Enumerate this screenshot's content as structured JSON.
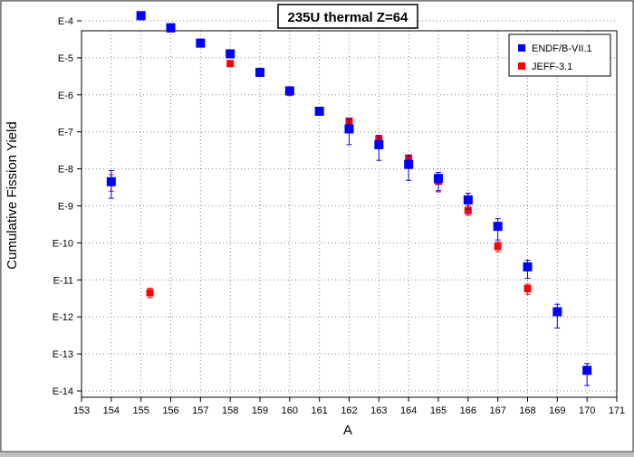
{
  "chart_data": {
    "type": "scatter",
    "title": "235U thermal Z=64",
    "xlabel": "A",
    "ylabel": "Cumulative Fission Yield",
    "xlim": [
      153,
      171
    ],
    "ylim": [
      1e-14,
      0.0001
    ],
    "yscale": "log",
    "grid": true,
    "legend_position": "top-right",
    "x_ticks": [
      "153",
      "154",
      "155",
      "156",
      "157",
      "158",
      "159",
      "160",
      "161",
      "162",
      "163",
      "164",
      "165",
      "166",
      "167",
      "168",
      "169",
      "170",
      "171"
    ],
    "y_ticks": [
      {
        "label": "E-4",
        "value": 0.0001
      },
      {
        "label": "E-5",
        "value": 1e-05
      },
      {
        "label": "E-6",
        "value": 1e-06
      },
      {
        "label": "E-7",
        "value": 1e-07
      },
      {
        "label": "E-8",
        "value": 1e-08
      },
      {
        "label": "E-9",
        "value": 1e-09
      },
      {
        "label": "E-10",
        "value": 1e-10
      },
      {
        "label": "E-11",
        "value": 1e-11
      },
      {
        "label": "E-12",
        "value": 1e-12
      },
      {
        "label": "E-13",
        "value": 1e-13
      },
      {
        "label": "E-14",
        "value": 1e-14
      }
    ],
    "series": [
      {
        "name": "ENDF/B-VII.1",
        "color": "#0000ff",
        "marker": "square",
        "points": [
          {
            "x": 154,
            "y": 4.5e-09,
            "lo": 1.6e-09,
            "hi": 9e-09
          },
          {
            "x": 155,
            "y": 0.000138
          },
          {
            "x": 156,
            "y": 6.5e-05
          },
          {
            "x": 157,
            "y": 2.5e-05
          },
          {
            "x": 158,
            "y": 1.28e-05
          },
          {
            "x": 159,
            "y": 4.05e-06
          },
          {
            "x": 160,
            "y": 1.28e-06
          },
          {
            "x": 161,
            "y": 3.6e-07
          },
          {
            "x": 162,
            "y": 1.2e-07,
            "lo": 4.5e-08,
            "hi": 2.2e-07
          },
          {
            "x": 163,
            "y": 4.5e-08,
            "lo": 1.7e-08,
            "hi": 8e-08
          },
          {
            "x": 164,
            "y": 1.32e-08,
            "lo": 4.9e-09,
            "hi": 2.3e-08
          },
          {
            "x": 165,
            "y": 5.5e-09,
            "lo": 2.4e-09,
            "hi": 8e-09
          },
          {
            "x": 166,
            "y": 1.45e-09,
            "lo": 8e-10,
            "hi": 2.2e-09
          },
          {
            "x": 167,
            "y": 2.8e-10,
            "lo": 1.2e-10,
            "hi": 4.5e-10
          },
          {
            "x": 168,
            "y": 2.25e-11,
            "lo": 1.1e-11,
            "hi": 3.4e-11
          },
          {
            "x": 169,
            "y": 1.38e-12,
            "lo": 5e-13,
            "hi": 2.2e-12
          },
          {
            "x": 170,
            "y": 3.6e-14,
            "lo": 1.4e-14,
            "hi": 5.5e-14
          }
        ]
      },
      {
        "name": "JEFF-3.1",
        "color": "#ff0000",
        "marker": "square",
        "points": [
          {
            "x": 154,
            "y": 4.5e-09,
            "lo": 2.5e-09,
            "hi": 7e-09
          },
          {
            "x": 155.3,
            "y": 4.5e-12,
            "lo": 3.3e-12,
            "hi": 6e-12
          },
          {
            "x": 155,
            "y": 0.00013
          },
          {
            "x": 156,
            "y": 6e-05
          },
          {
            "x": 157,
            "y": 2.5e-05
          },
          {
            "x": 158,
            "y": 7e-06
          },
          {
            "x": 159,
            "y": 4.05e-06
          },
          {
            "x": 160,
            "y": 1.23e-06,
            "lo": 9.5e-07,
            "hi": 1.55e-06
          },
          {
            "x": 161,
            "y": 3.5e-07
          },
          {
            "x": 162,
            "y": 1.95e-07
          },
          {
            "x": 163,
            "y": 6.5e-08
          },
          {
            "x": 164,
            "y": 1.95e-08
          },
          {
            "x": 165,
            "y": 4.6e-09,
            "lo": 2.6e-09,
            "hi": 6.6e-09
          },
          {
            "x": 166,
            "y": 7.5e-10,
            "lo": 5.6e-10,
            "hi": 1e-09
          },
          {
            "x": 167,
            "y": 8e-11,
            "lo": 5.8e-11,
            "hi": 1.05e-10
          },
          {
            "x": 168,
            "y": 5.8e-12,
            "lo": 4.1e-12,
            "hi": 7.7e-12
          }
        ]
      }
    ]
  }
}
